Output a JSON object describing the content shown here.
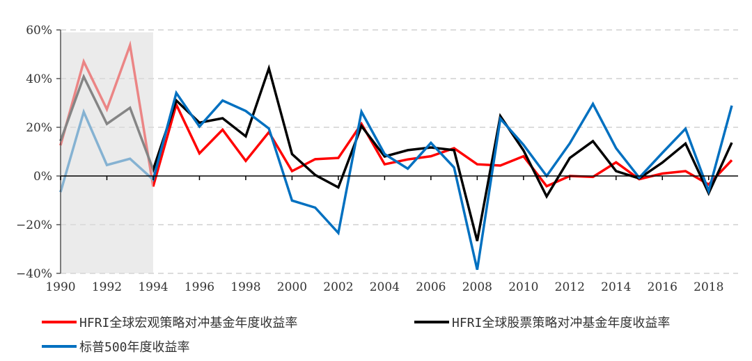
{
  "chart_data": {
    "type": "line",
    "title": "",
    "xlabel": "",
    "ylabel": "",
    "x": [
      1990,
      1991,
      1992,
      1993,
      1994,
      1995,
      1996,
      1997,
      1998,
      1999,
      2000,
      2001,
      2002,
      2003,
      2004,
      2005,
      2006,
      2007,
      2008,
      2009,
      2010,
      2011,
      2012,
      2013,
      2014,
      2015,
      2016,
      2017,
      2018,
      2019
    ],
    "xticks": [
      "1990",
      "1992",
      "1994",
      "1996",
      "1998",
      "2000",
      "2002",
      "2004",
      "2006",
      "2008",
      "2010",
      "2012",
      "2014",
      "2016",
      "2018"
    ],
    "ylim": [
      -40,
      60
    ],
    "yticks": [
      "60%",
      "40%",
      "20%",
      "0%",
      "−20%",
      "−40%"
    ],
    "ytick_values": [
      60,
      40,
      20,
      0,
      -20,
      -40
    ],
    "grid": "horizontal dashed",
    "shaded_range": [
      1990,
      1994
    ],
    "legend_position": "bottom",
    "series": [
      {
        "name": "HFRI全球宏观策略对冲基金年度收益率",
        "color": "#ff0000",
        "shaded_color": "#e86a6a",
        "values": [
          12.6,
          47,
          27.4,
          53.7,
          -4.3,
          29.3,
          9.3,
          19,
          6.2,
          18,
          2,
          6.9,
          7.4,
          21.4,
          4.8,
          6.8,
          8.1,
          11.4,
          4.8,
          4.3,
          8.1,
          -4.2,
          0,
          -0.4,
          5.6,
          -1.3,
          1,
          2,
          -3.5,
          6.5
        ]
      },
      {
        "name": "HFRI全球股票策略对冲基金年度收益率",
        "color": "#000000",
        "shaded_color": "#666666",
        "values": [
          14.4,
          40.8,
          21.4,
          28,
          2.6,
          31,
          21.9,
          23.7,
          16.3,
          44.2,
          9,
          0.4,
          -4.7,
          20.5,
          8,
          10.6,
          11.7,
          10.6,
          -26.7,
          24.6,
          10.5,
          -8.4,
          7.4,
          14.3,
          2,
          -1,
          5.5,
          13.3,
          -7.1,
          13.7
        ]
      },
      {
        "name": "标普500年度收益率",
        "color": "#0070c0",
        "shaded_color": "#6aa0cc",
        "values": [
          -6.6,
          26.3,
          4.5,
          7.1,
          -1.5,
          34.1,
          20.3,
          31,
          26.7,
          19.5,
          -10.1,
          -13,
          -23.4,
          26.4,
          9,
          3,
          13.6,
          3.5,
          -38.5,
          23.5,
          12.8,
          0,
          13.4,
          29.6,
          11.4,
          -0.7,
          9.5,
          19.4,
          -6.2,
          28.9
        ]
      }
    ]
  }
}
